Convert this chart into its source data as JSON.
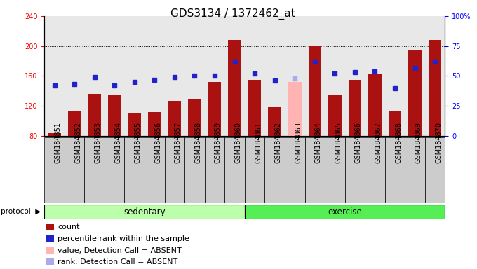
{
  "title": "GDS3134 / 1372462_at",
  "samples": [
    "GSM184851",
    "GSM184852",
    "GSM184853",
    "GSM184854",
    "GSM184855",
    "GSM184856",
    "GSM184857",
    "GSM184858",
    "GSM184859",
    "GSM184860",
    "GSM184861",
    "GSM184862",
    "GSM184863",
    "GSM184864",
    "GSM184865",
    "GSM184866",
    "GSM184867",
    "GSM184868",
    "GSM184869",
    "GSM184870"
  ],
  "count_values": [
    84,
    113,
    136,
    135,
    110,
    112,
    127,
    130,
    152,
    208,
    155,
    118,
    152,
    200,
    135,
    155,
    162,
    113,
    195,
    208
  ],
  "rank_values": [
    42,
    43,
    49,
    42,
    45,
    47,
    49,
    50,
    50,
    62,
    52,
    46,
    48,
    62,
    52,
    53,
    54,
    40,
    57,
    62
  ],
  "absent_bar_indices": [
    12
  ],
  "absent_rank_indices": [
    12
  ],
  "sedentary_count": 10,
  "exercise_count": 10,
  "ylim_left": [
    80,
    240
  ],
  "ylim_right": [
    0,
    100
  ],
  "yticks_left": [
    80,
    120,
    160,
    200,
    240
  ],
  "yticks_right": [
    0,
    25,
    50,
    75,
    100
  ],
  "bar_color": "#AA1111",
  "absent_bar_color": "#FFB3B3",
  "rank_color": "#2222CC",
  "absent_rank_color": "#AAAAEE",
  "sedentary_color": "#BBFFAA",
  "exercise_color": "#55EE55",
  "col_bg_color": "#CCCCCC",
  "legend_labels": [
    "count",
    "percentile rank within the sample",
    "value, Detection Call = ABSENT",
    "rank, Detection Call = ABSENT"
  ],
  "legend_colors": [
    "#AA1111",
    "#2222CC",
    "#FFB3B3",
    "#AAAAEE"
  ],
  "grid_dotted_at": [
    120,
    160,
    200
  ],
  "title_fontsize": 11,
  "tick_fontsize": 7,
  "legend_fontsize": 8
}
